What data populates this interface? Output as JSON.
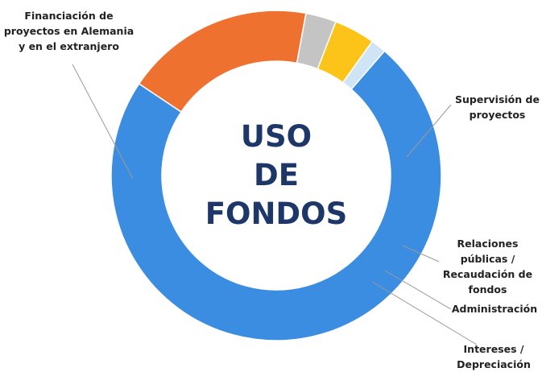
{
  "chart_data": {
    "type": "donut",
    "title": [
      "USO",
      "DE",
      "FONDOS"
    ],
    "categories": [
      "Financiación de proyectos en Alemania y en el extranjero",
      "Supervisión de proyectos",
      "Relaciones públicas / Recaudación de fondos",
      "Administración",
      "Intereses / Depreciación"
    ],
    "values": [
      73,
      18.5,
      3,
      4,
      1.5
    ],
    "colors": [
      "#3a8de0",
      "#ee7130",
      "#c4c4c4",
      "#fcc419",
      "#cfe5f6"
    ]
  }
}
